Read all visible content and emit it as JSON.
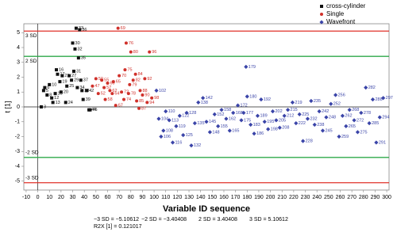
{
  "chart_data": {
    "type": "scatter",
    "x_label": "Variable ID sequence",
    "y_label": "t [1]",
    "xlim": [
      -12,
      302
    ],
    "ylim": [
      -5.6,
      5.6
    ],
    "xticks": [
      -10,
      0,
      10,
      20,
      30,
      40,
      50,
      60,
      70,
      80,
      90,
      100,
      110,
      120,
      130,
      140,
      150,
      160,
      170,
      180,
      190,
      200,
      210,
      220,
      230,
      240,
      250,
      260,
      270,
      280,
      290,
      300
    ],
    "yticks": [
      -5,
      -4,
      -3,
      -2,
      -1,
      0,
      1,
      2,
      3,
      4,
      5
    ],
    "legend": "top-right",
    "reference_lines": [
      {
        "value": 5.10612,
        "label": "3 SD",
        "color": "#e0302a"
      },
      {
        "value": 3.40408,
        "label": "2 SD",
        "color": "#2ea84a"
      },
      {
        "value": -3.40408,
        "label": "-2 SD",
        "color": "#2ea84a"
      },
      {
        "value": -5.10612,
        "label": "-3 SD",
        "color": "#e0302a"
      }
    ],
    "footer": [
      "−3 SD = −5.10612",
      "−2 SD = −3.40408",
      "2  SD = 3.40408",
      "3  SD = 5.10612",
      "R2X [1] = 0.121017"
    ],
    "series": [
      {
        "name": "cross-cylinder",
        "color": "#111111",
        "marker": "square",
        "x": [
          3,
          5,
          6,
          8,
          10,
          12,
          13,
          15,
          16,
          17,
          19,
          20,
          21,
          24,
          25,
          27,
          29,
          30,
          31,
          32,
          33,
          34,
          35,
          36,
          37,
          38,
          39,
          42,
          44,
          45
        ],
        "y": [
          0.0,
          1.1,
          1.3,
          0.8,
          1.5,
          0.6,
          0.3,
          0.9,
          2.5,
          2.2,
          1.7,
          1.0,
          2.1,
          0.3,
          1.4,
          2.1,
          1.8,
          4.3,
          2.4,
          3.9,
          5.3,
          1.3,
          3.3,
          5.2,
          1.8,
          1.1,
          0.5,
          1.1,
          -0.2,
          -0.2
        ]
      },
      {
        "name": "Single",
        "color": "#d0302a",
        "marker": "circle",
        "x": [
          47,
          50,
          52,
          55,
          57,
          58,
          60,
          62,
          64,
          65,
          67,
          69,
          70,
          72,
          74,
          75,
          76,
          78,
          79,
          80,
          82,
          84,
          85,
          87,
          88,
          90,
          92,
          94,
          96,
          98
        ],
        "y": [
          1.4,
          1.9,
          0.9,
          1.8,
          1.3,
          0.5,
          1.6,
          1.1,
          0.9,
          1.7,
          0.1,
          5.3,
          2.1,
          1.0,
          0.5,
          2.5,
          4.3,
          0.9,
          1.5,
          3.7,
          1.8,
          2.2,
          0.4,
          -0.1,
          1.1,
          0.8,
          1.9,
          0.3,
          3.7,
          0.6
        ]
      },
      {
        "name": "Wavefront",
        "color": "#3a44a8",
        "marker": "diamond",
        "x": [
          102,
          104,
          106,
          108,
          110,
          113,
          116,
          119,
          122,
          125,
          128,
          132,
          135,
          138,
          142,
          145,
          148,
          152,
          155,
          158,
          162,
          165,
          168,
          172,
          175,
          177,
          179,
          180,
          183,
          186,
          189,
          192,
          195,
          198,
          202,
          205,
          208,
          212,
          215,
          219,
          222,
          225,
          228,
          232,
          235,
          238,
          242,
          245,
          248,
          252,
          256,
          259,
          262,
          265,
          268,
          272,
          275,
          278,
          282,
          285,
          288,
          291,
          294,
          297
        ],
        "y": [
          1.1,
          -0.8,
          -2.0,
          -1.6,
          -0.3,
          -0.9,
          -2.4,
          -1.3,
          -0.6,
          -1.9,
          -0.4,
          -2.6,
          -1.1,
          0.3,
          0.6,
          -1.0,
          -1.7,
          -0.5,
          -1.3,
          -0.2,
          -0.8,
          -1.6,
          -0.4,
          0.1,
          -0.9,
          -0.4,
          2.7,
          0.7,
          -1.2,
          -1.8,
          -0.6,
          0.5,
          -1.0,
          -1.5,
          -0.3,
          -0.9,
          -1.4,
          -0.6,
          -0.2,
          0.3,
          -1.1,
          -0.5,
          -2.3,
          -0.8,
          0.4,
          -1.2,
          -0.3,
          -1.6,
          -0.7,
          0.2,
          0.8,
          -2.0,
          -0.6,
          -1.3,
          -0.2,
          -0.9,
          -1.7,
          -0.4,
          1.3,
          -1.1,
          0.5,
          -2.4,
          -0.7,
          0.6
        ]
      }
    ]
  }
}
